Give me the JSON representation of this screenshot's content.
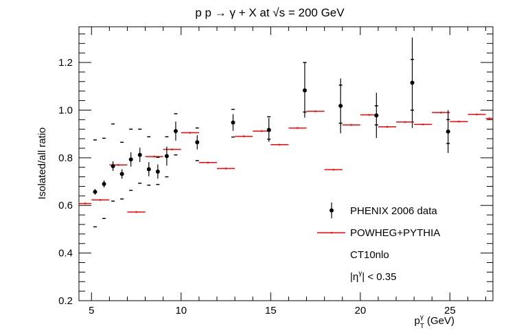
{
  "chart_data": {
    "type": "scatter",
    "title": "p p → γ + X at √s = 200 GeV",
    "xlabel": "p_T^γ (GeV)",
    "xlabel_parts": {
      "base": "p",
      "sup": "γ",
      "sub": "T",
      "unit": "(GeV)"
    },
    "ylabel": "Isolated/all ratio",
    "xlim": [
      4.3,
      27.4
    ],
    "ylim": [
      0.2,
      1.35
    ],
    "xticks": [
      5,
      10,
      15,
      20,
      25
    ],
    "xtick_labels": [
      "5",
      "10",
      "15",
      "20",
      "25"
    ],
    "yticks": [
      0.2,
      0.4,
      0.6,
      0.8,
      1.0,
      1.2
    ],
    "ytick_labels": [
      "0.2",
      "0.4",
      "0.6",
      "0.8",
      "1.0",
      "1.2"
    ],
    "grid": false,
    "legend_position": "bottom-right",
    "colors": {
      "data": "#000000",
      "theory": "#ff0000",
      "sys": "#000000"
    },
    "series": [
      {
        "name": "PHENIX 2006 data",
        "kind": "points_with_errors",
        "points": [
          {
            "x": 5.2,
            "y": 0.657,
            "err": 0.012,
            "sys_lo": 0.51,
            "sys_hi": 0.875
          },
          {
            "x": 5.7,
            "y": 0.69,
            "err": 0.015,
            "sys_lo": 0.545,
            "sys_hi": 0.882
          },
          {
            "x": 6.2,
            "y": 0.765,
            "err": 0.02,
            "sys_lo": 0.618,
            "sys_hi": 0.942
          },
          {
            "x": 6.7,
            "y": 0.732,
            "err": 0.02,
            "sys_lo": 0.627,
            "sys_hi": 0.865
          },
          {
            "x": 7.2,
            "y": 0.793,
            "err": 0.03,
            "sys_lo": 0.663,
            "sys_hi": 0.92
          },
          {
            "x": 7.7,
            "y": 0.812,
            "err": 0.03,
            "sys_lo": 0.693,
            "sys_hi": 0.92
          },
          {
            "x": 8.2,
            "y": 0.752,
            "err": 0.03,
            "sys_lo": 0.685,
            "sys_hi": 0.888
          },
          {
            "x": 8.7,
            "y": 0.742,
            "err": 0.03,
            "sys_lo": 0.688,
            "sys_hi": 0.802
          },
          {
            "x": 9.2,
            "y": 0.807,
            "err": 0.04,
            "sys_lo": 0.72,
            "sys_hi": 0.888
          },
          {
            "x": 9.7,
            "y": 0.912,
            "err": 0.04,
            "sys_lo": 0.812,
            "sys_hi": 0.985
          },
          {
            "x": 10.9,
            "y": 0.865,
            "err": 0.03,
            "sys_lo": 0.788,
            "sys_hi": 0.925
          },
          {
            "x": 12.9,
            "y": 0.948,
            "err": 0.035,
            "sys_lo": 0.887,
            "sys_hi": 1.003
          },
          {
            "x": 14.9,
            "y": 0.917,
            "err": 0.05,
            "sys_lo": 0.878,
            "sys_hi": 0.972
          },
          {
            "x": 16.9,
            "y": 1.083,
            "err": 0.115,
            "sys_lo": 0.992,
            "sys_hi": 1.2
          },
          {
            "x": 18.9,
            "y": 1.018,
            "err": 0.115,
            "sys_lo": 0.945,
            "sys_hi": 1.105
          },
          {
            "x": 20.9,
            "y": 0.978,
            "err": 0.095,
            "sys_lo": 0.938,
            "sys_hi": 1.018
          },
          {
            "x": 22.9,
            "y": 1.115,
            "err": 0.19,
            "sys_lo": 1.0,
            "sys_hi": 1.213
          },
          {
            "x": 24.9,
            "y": 0.91,
            "err": 0.09,
            "sys_lo": 0.86,
            "sys_hi": 0.96
          }
        ]
      },
      {
        "name": "POWHEG+PYTHIA",
        "kind": "horizontal_bins",
        "bins": [
          {
            "x0": 4.3,
            "x1": 5.0,
            "y": 0.608
          },
          {
            "x0": 5.0,
            "x1": 6.0,
            "y": 0.623
          },
          {
            "x0": 6.0,
            "x1": 7.0,
            "y": 0.77
          },
          {
            "x0": 7.0,
            "x1": 8.0,
            "y": 0.572
          },
          {
            "x0": 8.0,
            "x1": 9.0,
            "y": 0.805
          },
          {
            "x0": 9.0,
            "x1": 10.0,
            "y": 0.835
          },
          {
            "x0": 10.0,
            "x1": 11.0,
            "y": 0.905
          },
          {
            "x0": 11.0,
            "x1": 12.0,
            "y": 0.78
          },
          {
            "x0": 12.0,
            "x1": 13.0,
            "y": 0.755
          },
          {
            "x0": 13.0,
            "x1": 14.0,
            "y": 0.89
          },
          {
            "x0": 14.0,
            "x1": 15.0,
            "y": 0.912
          },
          {
            "x0": 15.0,
            "x1": 16.0,
            "y": 0.855
          },
          {
            "x0": 16.0,
            "x1": 17.0,
            "y": 0.925
          },
          {
            "x0": 17.0,
            "x1": 18.0,
            "y": 0.995
          },
          {
            "x0": 18.0,
            "x1": 19.0,
            "y": 0.75
          },
          {
            "x0": 19.0,
            "x1": 20.0,
            "y": 0.938
          },
          {
            "x0": 20.0,
            "x1": 21.0,
            "y": 0.98
          },
          {
            "x0": 21.0,
            "x1": 22.0,
            "y": 0.93
          },
          {
            "x0": 22.0,
            "x1": 23.0,
            "y": 0.95
          },
          {
            "x0": 23.0,
            "x1": 24.0,
            "y": 0.94
          },
          {
            "x0": 24.0,
            "x1": 25.0,
            "y": 0.99
          },
          {
            "x0": 25.0,
            "x1": 26.0,
            "y": 0.952
          },
          {
            "x0": 26.0,
            "x1": 27.0,
            "y": 0.982
          },
          {
            "x0": 27.0,
            "x1": 27.4,
            "y": 0.965
          }
        ]
      }
    ],
    "legend": {
      "entries": [
        "PHENIX 2006 data",
        "POWHEG+PYTHIA"
      ],
      "notes": [
        "CT10nlo"
      ],
      "eta_cut": {
        "base": "|η",
        "sup": "γ",
        "rest": "| < 0.35"
      }
    }
  }
}
